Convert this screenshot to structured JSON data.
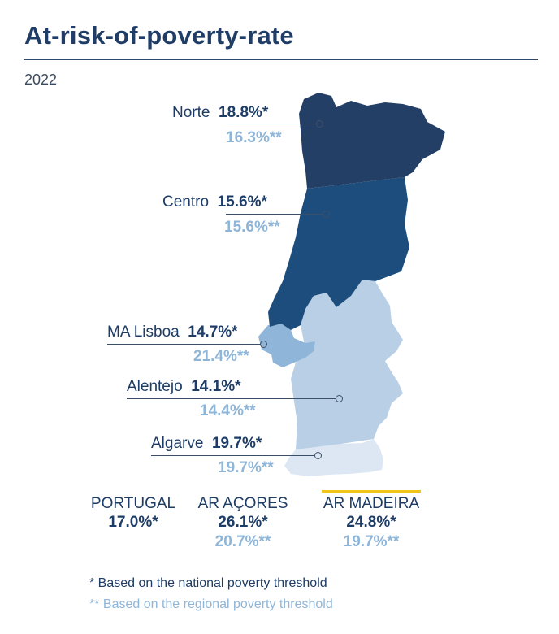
{
  "title": "At-risk-of-poverty-rate",
  "year": "2022",
  "colors": {
    "norte": "#243f66",
    "centro": "#1d4d7c",
    "lisboa": "#8fb6d8",
    "alentejo": "#b9cfe6",
    "algarve": "#dde7f3",
    "accent": "#f0c419"
  },
  "regions": [
    {
      "name": "Norte",
      "national": "18.8%*",
      "regional": "16.3%**"
    },
    {
      "name": "Centro",
      "national": "15.6%*",
      "regional": "15.6%**"
    },
    {
      "name": "MA Lisboa",
      "national": "14.7%*",
      "regional": "21.4%**"
    },
    {
      "name": "Alentejo",
      "national": "14.1%*",
      "regional": "14.4%**"
    },
    {
      "name": "Algarve",
      "national": "19.7%*",
      "regional": "19.7%**"
    }
  ],
  "summary": [
    {
      "name": "PORTUGAL",
      "national": "17.0%*"
    },
    {
      "name": "AR AÇORES",
      "national": "26.1%*",
      "regional": "20.7%**"
    },
    {
      "name": "AR MADEIRA",
      "national": "24.8%*",
      "regional": "19.7%**"
    }
  ],
  "notes": {
    "national": "* Based on the national poverty threshold",
    "regional": "** Based on the regional poverty threshold"
  }
}
